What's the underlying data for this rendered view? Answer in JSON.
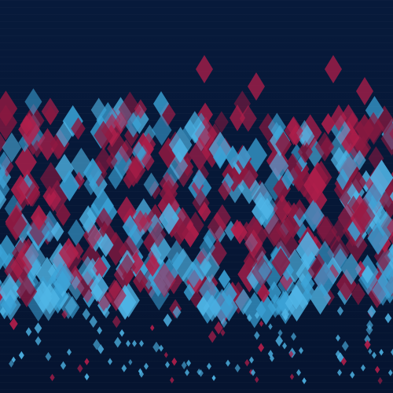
{
  "scene": {
    "background": "#061838",
    "colors": {
      "crimson": "#b01e4a",
      "crimson_dark": "#8a1840",
      "sky": "#3aa2d6",
      "sky_light": "#4fb5e6"
    },
    "shape": "diamond"
  }
}
